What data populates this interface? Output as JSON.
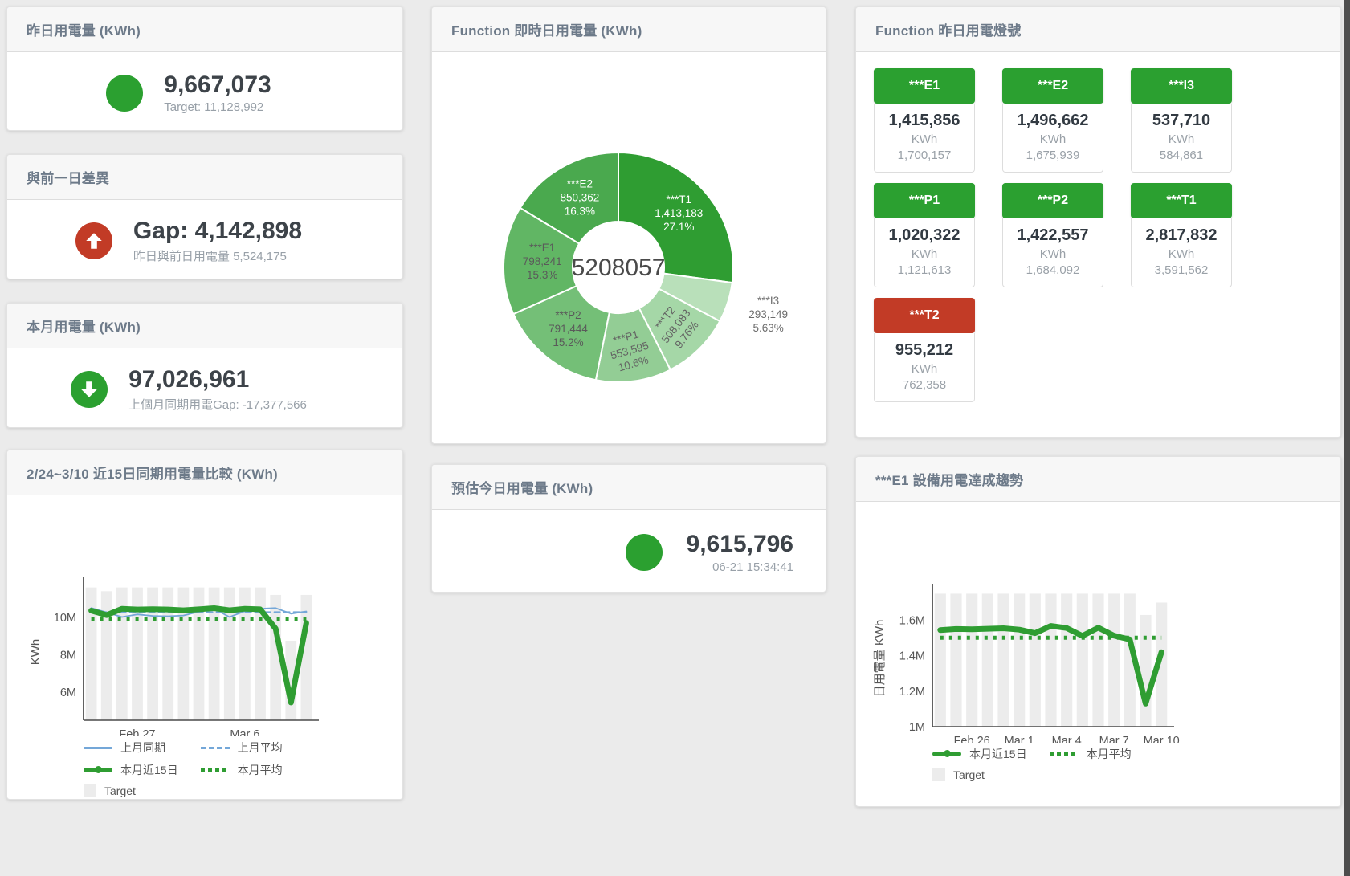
{
  "colors": {
    "green": "#2ba030",
    "red": "#c23b26",
    "blue": "#74a7d8",
    "bar_gray": "#ececec",
    "header_text": "#6d7a89",
    "value_text": "#3d4349"
  },
  "panels": {
    "yesterday": {
      "title": "昨日用電量 (KWh)",
      "value": "9,667,073",
      "subtext": "Target: 11,128,992",
      "indicator": "green-circle"
    },
    "gap": {
      "title": "與前一日差異",
      "value": "Gap: 4,142,898",
      "subtext": "昨日與前日用電量 5,524,175",
      "indicator": "red-up-arrow"
    },
    "month": {
      "title": "本月用電量 (KWh)",
      "value": "97,026,961",
      "subtext": "上個月同期用電Gap: -17,377,566",
      "indicator": "green-down-arrow"
    },
    "compare15": {
      "title": "2/24~3/10 近15日同期用電量比較 (KWh)"
    },
    "realtime": {
      "title": "Function 即時日用電量 (KWh)"
    },
    "today_estimate": {
      "title": "預估今日用電量 (KWh)",
      "value": "9,615,796",
      "subtext": "06-21 15:34:41",
      "indicator": "green-circle"
    },
    "lamp": {
      "title": "Function 昨日用電燈號",
      "tiles": [
        {
          "label": "***E1",
          "value": "1,415,856",
          "unit": "KWh",
          "target": "1,700,157",
          "status": "green"
        },
        {
          "label": "***E2",
          "value": "1,496,662",
          "unit": "KWh",
          "target": "1,675,939",
          "status": "green"
        },
        {
          "label": "***I3",
          "value": "537,710",
          "unit": "KWh",
          "target": "584,861",
          "status": "green"
        },
        {
          "label": "***P1",
          "value": "1,020,322",
          "unit": "KWh",
          "target": "1,121,613",
          "status": "green"
        },
        {
          "label": "***P2",
          "value": "1,422,557",
          "unit": "KWh",
          "target": "1,684,092",
          "status": "green"
        },
        {
          "label": "***T1",
          "value": "2,817,832",
          "unit": "KWh",
          "target": "3,591,562",
          "status": "green"
        },
        {
          "label": "***T2",
          "value": "955,212",
          "unit": "KWh",
          "target": "762,358",
          "status": "red"
        }
      ]
    },
    "e1_trend": {
      "title": "***E1 設備用電達成趨勢"
    }
  },
  "chart_data": [
    {
      "id": "donut",
      "type": "pie",
      "title": "Function 即時日用電量 (KWh)",
      "center_total": "5208057",
      "slices": [
        {
          "name": "***T1",
          "value": 1413183,
          "pct": "27.1%",
          "color": "#2f9d32",
          "label_color": "#ffffff",
          "label_r": 100
        },
        {
          "name": "***I3",
          "value": 293149,
          "pct": "5.63%",
          "color": "#b9e0ba",
          "label_color": "#6b6b6b",
          "outside": true,
          "label_r": 196
        },
        {
          "name": "***T2",
          "value": 508083,
          "pct": "9.76%",
          "color": "#a5d7a7",
          "label_color": "#636363",
          "rotate": -52,
          "label_r": 104
        },
        {
          "name": "***P1",
          "value": 553595,
          "pct": "10.6%",
          "color": "#93cd95",
          "label_color": "#636363",
          "rotate": -16,
          "label_r": 106
        },
        {
          "name": "***P2",
          "value": 791444,
          "pct": "15.2%",
          "color": "#74bf77",
          "label_color": "#5a5a5a",
          "label_r": 100
        },
        {
          "name": "***E1",
          "value": 798241,
          "pct": "15.3%",
          "color": "#61b664",
          "label_color": "#5a5a5a",
          "label_r": 95
        },
        {
          "name": "***E2",
          "value": 850362,
          "pct": "16.3%",
          "color": "#4aa94e",
          "label_color": "#ffffff",
          "label_r": 98
        }
      ]
    },
    {
      "id": "compare15",
      "type": "line",
      "title": "2/24~3/10 近15日同期用電量比較 (KWh)",
      "ylabel": "KWh",
      "ylim": [
        4500000,
        11800000
      ],
      "yticks": [
        {
          "v": 6000000,
          "label": "6M"
        },
        {
          "v": 8000000,
          "label": "8M"
        },
        {
          "v": 10000000,
          "label": "10M"
        }
      ],
      "xticks": [
        {
          "i": 3,
          "label": "Feb 27"
        },
        {
          "i": 10,
          "label": "Mar 6"
        }
      ],
      "target_bars": {
        "name": "Target",
        "color": "#ececec",
        "values": [
          11600000,
          11400000,
          11600000,
          11600000,
          11600000,
          11600000,
          11600000,
          11600000,
          11600000,
          11600000,
          11600000,
          11600000,
          11200000,
          8750000,
          11200000
        ]
      },
      "series": [
        {
          "name": "上月同期",
          "style": "thin",
          "color": "#74a7d8",
          "values": [
            10500000,
            10270000,
            10020000,
            10160000,
            10080000,
            10060000,
            10100000,
            10300000,
            10460000,
            10020000,
            10330000,
            10460000,
            10500000,
            10200000,
            10320000
          ]
        },
        {
          "name": "上月平均",
          "style": "dashed",
          "color": "#74a7d8",
          "const": 10280000
        },
        {
          "name": "本月近15日",
          "style": "thick",
          "color": "#2f9d32",
          "values": [
            10360000,
            10120000,
            10460000,
            10420000,
            10440000,
            10420000,
            10380000,
            10430000,
            10490000,
            10380000,
            10460000,
            10430000,
            9400000,
            5450000,
            9700000
          ]
        },
        {
          "name": "本月平均",
          "style": "dotted",
          "color": "#2f9d32",
          "const": 9900000
        }
      ],
      "legend": [
        {
          "swatch": "line",
          "color": "#74a7d8",
          "label": "上月同期"
        },
        {
          "swatch": "dash",
          "color": "#74a7d8",
          "label": "上月平均"
        },
        {
          "swatch": "thick",
          "color": "#2f9d32",
          "label": "本月近15日"
        },
        {
          "swatch": "dot",
          "color": "#2f9d32",
          "label": "本月平均"
        },
        {
          "swatch": "square",
          "color": "#ececec",
          "label": "Target"
        }
      ]
    },
    {
      "id": "e1trend",
      "type": "line",
      "title": "***E1 設備用電達成趨勢",
      "ylabel": "日用電量 KWh",
      "ylim": [
        1000000,
        1770000
      ],
      "yticks": [
        {
          "v": 1000000,
          "label": "1M"
        },
        {
          "v": 1200000,
          "label": "1.2M"
        },
        {
          "v": 1400000,
          "label": "1.4M"
        },
        {
          "v": 1600000,
          "label": "1.6M"
        }
      ],
      "xticks": [
        {
          "i": 2,
          "label": "Feb 26"
        },
        {
          "i": 5,
          "label": "Mar 1"
        },
        {
          "i": 8,
          "label": "Mar 4"
        },
        {
          "i": 11,
          "label": "Mar 7"
        },
        {
          "i": 14,
          "label": "Mar 10"
        }
      ],
      "target_bars": {
        "name": "Target",
        "color": "#ececec",
        "values": [
          1750000,
          1750000,
          1750000,
          1750000,
          1750000,
          1750000,
          1750000,
          1750000,
          1750000,
          1750000,
          1750000,
          1750000,
          1750000,
          1630000,
          1700000
        ]
      },
      "series": [
        {
          "name": "本月近15日",
          "style": "thick",
          "color": "#2f9d32",
          "values": [
            1545000,
            1551000,
            1549000,
            1552000,
            1555000,
            1547000,
            1527000,
            1568000,
            1556000,
            1512000,
            1558000,
            1513000,
            1492000,
            1130000,
            1420000
          ]
        },
        {
          "name": "本月平均",
          "style": "dotted",
          "color": "#2f9d32",
          "const": 1502000
        }
      ],
      "legend": [
        {
          "swatch": "thick",
          "color": "#2f9d32",
          "label": "本月近15日"
        },
        {
          "swatch": "dot",
          "color": "#2f9d32",
          "label": "本月平均"
        },
        {
          "swatch": "square",
          "color": "#ececec",
          "label": "Target"
        }
      ]
    }
  ]
}
